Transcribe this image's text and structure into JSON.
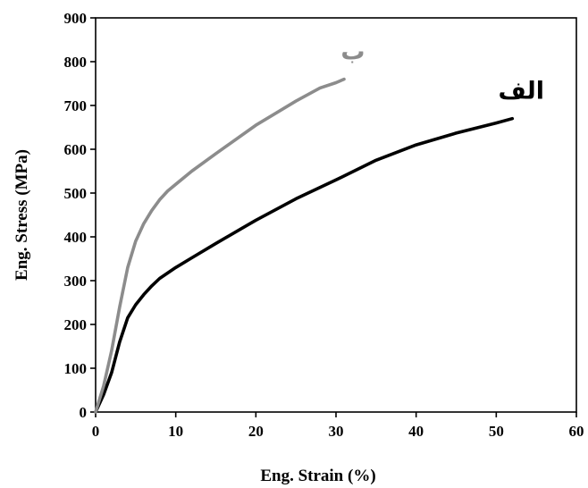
{
  "chart_data": {
    "type": "line",
    "title": "",
    "xlabel": "Eng. Strain (%)",
    "ylabel": "Eng. Stress (MPa)",
    "xlim": [
      0,
      60
    ],
    "ylim": [
      0,
      900
    ],
    "xticks": [
      0,
      10,
      20,
      30,
      40,
      50,
      60
    ],
    "yticks": [
      0,
      100,
      200,
      300,
      400,
      500,
      600,
      700,
      800,
      900
    ],
    "grid": false,
    "series": [
      {
        "name": "الف",
        "color": "#000000",
        "points": [
          [
            0,
            0
          ],
          [
            1,
            40
          ],
          [
            2,
            90
          ],
          [
            3,
            160
          ],
          [
            4,
            215
          ],
          [
            5,
            245
          ],
          [
            6,
            268
          ],
          [
            7,
            288
          ],
          [
            8,
            305
          ],
          [
            10,
            330
          ],
          [
            12,
            352
          ],
          [
            15,
            385
          ],
          [
            20,
            438
          ],
          [
            25,
            487
          ],
          [
            30,
            530
          ],
          [
            35,
            575
          ],
          [
            40,
            610
          ],
          [
            45,
            637
          ],
          [
            50,
            660
          ],
          [
            52,
            670
          ]
        ]
      },
      {
        "name": "ب",
        "color": "#8c8c8c",
        "points": [
          [
            0,
            0
          ],
          [
            1,
            60
          ],
          [
            2,
            140
          ],
          [
            3,
            240
          ],
          [
            4,
            330
          ],
          [
            5,
            390
          ],
          [
            6,
            430
          ],
          [
            7,
            460
          ],
          [
            8,
            485
          ],
          [
            9,
            505
          ],
          [
            10,
            520
          ],
          [
            12,
            550
          ],
          [
            15,
            590
          ],
          [
            20,
            655
          ],
          [
            25,
            710
          ],
          [
            28,
            740
          ],
          [
            30,
            752
          ],
          [
            31,
            760
          ]
        ]
      }
    ]
  }
}
